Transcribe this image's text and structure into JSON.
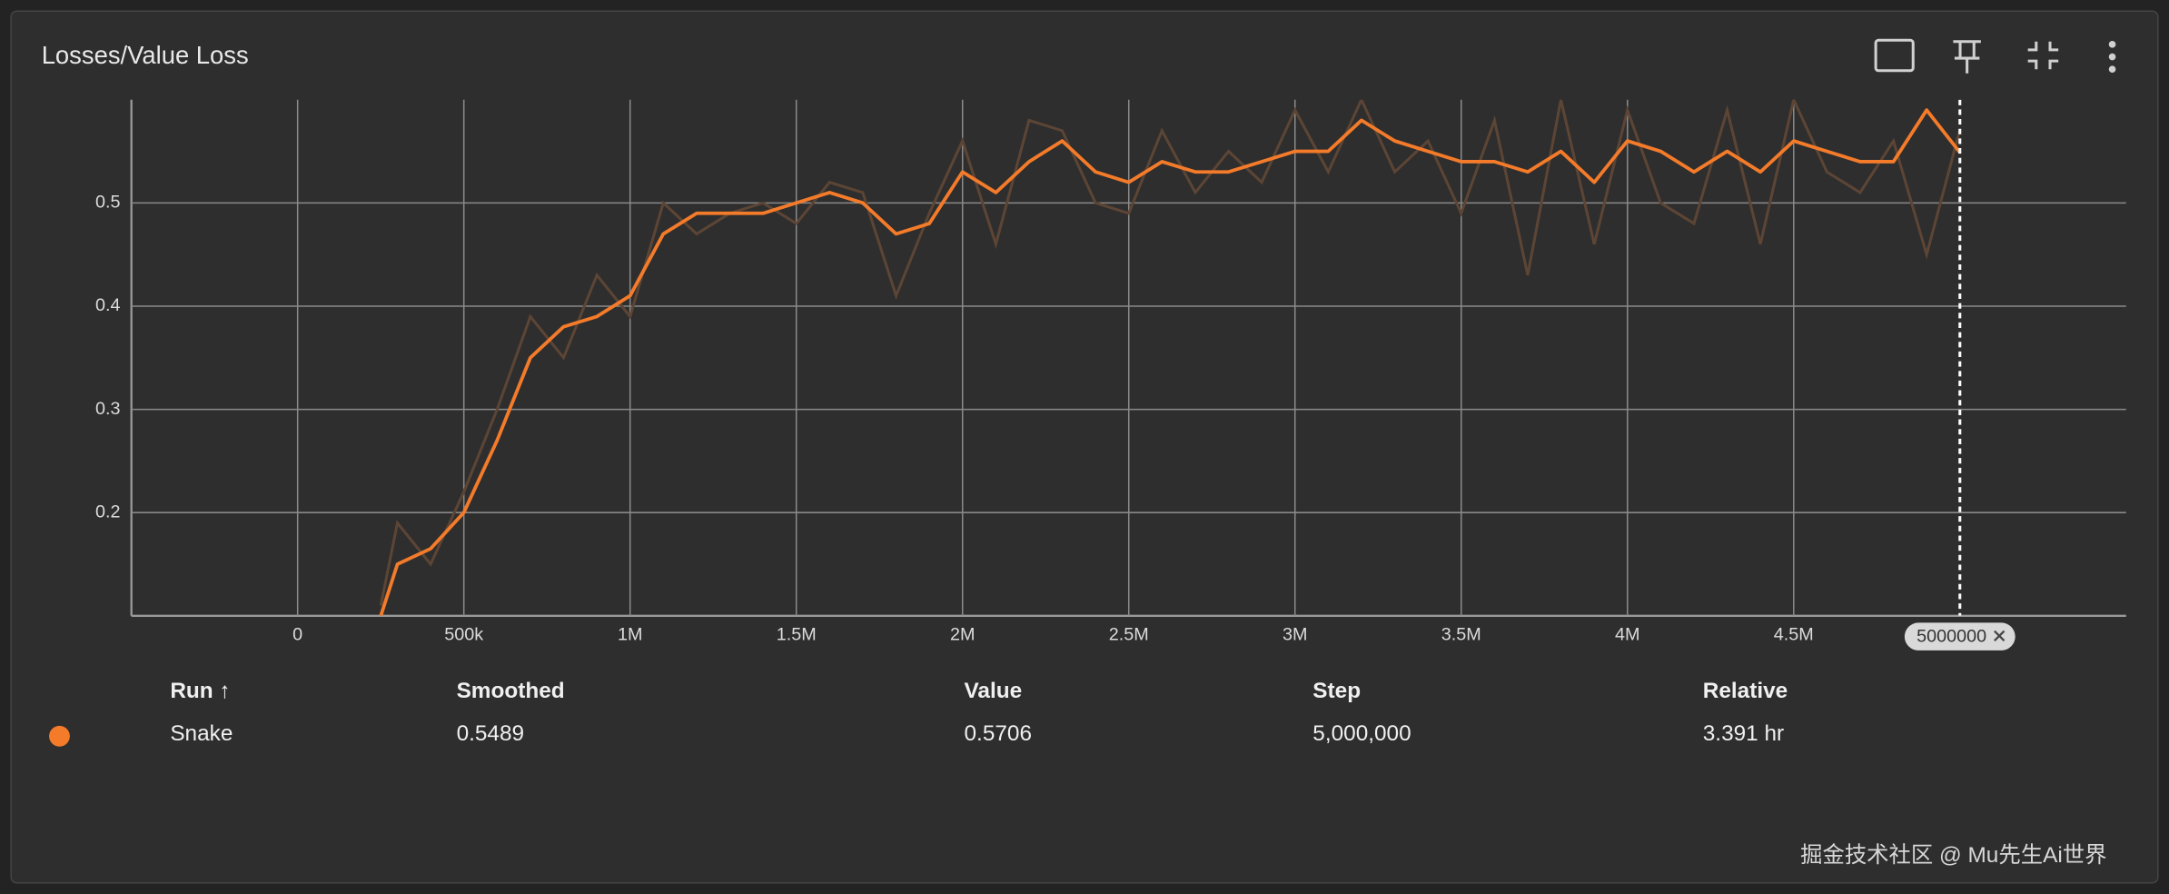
{
  "chart_data": {
    "type": "line",
    "title": "Losses/Value Loss",
    "x": [
      250000,
      300000,
      400000,
      500000,
      600000,
      700000,
      800000,
      900000,
      1000000,
      1100000,
      1200000,
      1300000,
      1400000,
      1500000,
      1600000,
      1700000,
      1800000,
      1900000,
      2000000,
      2100000,
      2200000,
      2300000,
      2400000,
      2500000,
      2600000,
      2700000,
      2800000,
      2900000,
      3000000,
      3100000,
      3200000,
      3300000,
      3400000,
      3500000,
      3600000,
      3700000,
      3800000,
      3900000,
      4000000,
      4100000,
      4200000,
      4300000,
      4400000,
      4500000,
      4600000,
      4700000,
      4800000,
      4900000,
      5000000
    ],
    "series": [
      {
        "name": "Snake",
        "color": "#f47b2a",
        "raw_color": "#5c4535",
        "values": [
          0.1,
          0.15,
          0.165,
          0.2,
          0.27,
          0.35,
          0.38,
          0.39,
          0.41,
          0.47,
          0.49,
          0.49,
          0.49,
          0.5,
          0.51,
          0.5,
          0.47,
          0.48,
          0.53,
          0.51,
          0.54,
          0.56,
          0.53,
          0.52,
          0.54,
          0.53,
          0.53,
          0.54,
          0.55,
          0.55,
          0.58,
          0.56,
          0.55,
          0.54,
          0.54,
          0.53,
          0.55,
          0.52,
          0.56,
          0.55,
          0.53,
          0.55,
          0.53,
          0.56,
          0.55,
          0.54,
          0.54,
          0.59,
          0.5489
        ],
        "raw_values": [
          0.11,
          0.19,
          0.15,
          0.22,
          0.3,
          0.39,
          0.35,
          0.43,
          0.39,
          0.5,
          0.47,
          0.49,
          0.5,
          0.48,
          0.52,
          0.51,
          0.41,
          0.49,
          0.56,
          0.46,
          0.58,
          0.57,
          0.5,
          0.49,
          0.57,
          0.51,
          0.55,
          0.52,
          0.59,
          0.53,
          0.6,
          0.53,
          0.56,
          0.49,
          0.58,
          0.43,
          0.6,
          0.46,
          0.59,
          0.5,
          0.48,
          0.59,
          0.46,
          0.6,
          0.53,
          0.51,
          0.56,
          0.45,
          0.5706
        ]
      }
    ],
    "xlim": [
      -500000,
      5500000
    ],
    "xticks": [
      0,
      {
        "value": 500000,
        "label": "500k"
      },
      {
        "value": 1000000,
        "label": "1M"
      },
      {
        "value": 1500000,
        "label": "1.5M"
      },
      {
        "value": 2000000,
        "label": "2M"
      },
      {
        "value": 2500000,
        "label": "2.5M"
      },
      {
        "value": 3000000,
        "label": "3M"
      },
      {
        "value": 3500000,
        "label": "3.5M"
      },
      {
        "value": 4000000,
        "label": "4M"
      },
      {
        "value": 4500000,
        "label": "4.5M"
      }
    ],
    "ylim": [
      0.1,
      0.6
    ],
    "yticks": [
      0.2,
      0.3,
      0.4,
      0.5
    ],
    "grid": true,
    "hover_step": 5000000
  },
  "table": {
    "headers": [
      "Run ↑",
      "Smoothed",
      "Value",
      "Step",
      "Relative"
    ],
    "rows": [
      [
        "Snake",
        "0.5489",
        "0.5706",
        "5,000,000",
        "3.391 hr"
      ]
    ]
  },
  "watermark": "掘金技术社区 @ Mu先生Ai世界"
}
